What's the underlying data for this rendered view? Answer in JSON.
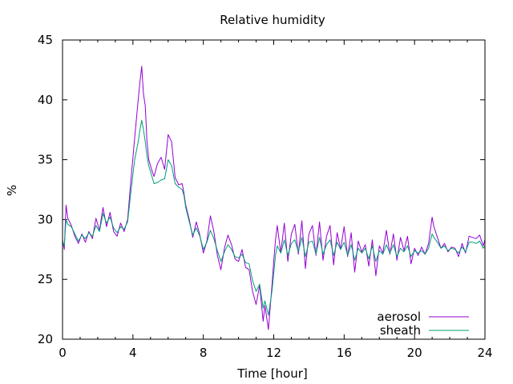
{
  "chart_data": {
    "type": "line",
    "title": "Relative humidity",
    "xlabel": "Time [hour]",
    "ylabel": "%",
    "xlim": [
      0,
      24
    ],
    "ylim": [
      20,
      45
    ],
    "xticks": [
      0,
      4,
      8,
      12,
      16,
      20,
      24
    ],
    "xtick_labels": [
      "0",
      "4",
      "8",
      "12",
      "16",
      "20",
      "24"
    ],
    "yticks": [
      20,
      25,
      30,
      35,
      40,
      45
    ],
    "ytick_labels": [
      "20",
      "25",
      "30",
      "35",
      "40",
      "45"
    ],
    "grid": false,
    "legend_position": "bottom-right",
    "series": [
      {
        "name": "aerosol",
        "color": "#9400d3",
        "x": [
          0,
          0.1,
          0.2,
          0.3,
          0.5,
          0.7,
          0.9,
          1.1,
          1.3,
          1.5,
          1.7,
          1.9,
          2.1,
          2.3,
          2.5,
          2.7,
          2.9,
          3.0,
          3.1,
          3.3,
          3.5,
          3.7,
          3.9,
          4.1,
          4.3,
          4.4,
          4.5,
          4.6,
          4.7,
          4.8,
          4.9,
          5.0,
          5.1,
          5.2,
          5.4,
          5.6,
          5.8,
          6.0,
          6.2,
          6.4,
          6.6,
          6.8,
          6.9,
          7.0,
          7.2,
          7.4,
          7.6,
          7.8,
          8.0,
          8.2,
          8.4,
          8.6,
          8.8,
          9.0,
          9.2,
          9.4,
          9.6,
          9.8,
          10.0,
          10.2,
          10.4,
          10.6,
          10.8,
          11.0,
          11.2,
          11.4,
          11.5,
          11.7,
          11.9,
          12.0,
          12.1,
          12.2,
          12.4,
          12.6,
          12.8,
          13.0,
          13.2,
          13.4,
          13.6,
          13.8,
          14.0,
          14.2,
          14.4,
          14.6,
          14.8,
          15.0,
          15.2,
          15.4,
          15.6,
          15.8,
          16.0,
          16.2,
          16.4,
          16.6,
          16.8,
          17.0,
          17.2,
          17.4,
          17.6,
          17.8,
          18.0,
          18.2,
          18.4,
          18.6,
          18.8,
          19.0,
          19.2,
          19.4,
          19.6,
          19.8,
          20.0,
          20.2,
          20.4,
          20.6,
          20.8,
          21.0,
          21.1,
          21.3,
          21.5,
          21.7,
          21.9,
          22.1,
          22.3,
          22.5,
          22.7,
          22.9,
          23.1,
          23.3,
          23.5,
          23.7,
          23.9,
          24.0
        ],
        "values": [
          28.3,
          27.5,
          31.2,
          30.1,
          29.5,
          28.6,
          28.0,
          28.8,
          28.1,
          29.0,
          28.4,
          30.1,
          29.1,
          31.0,
          29.4,
          30.6,
          29.0,
          28.8,
          28.6,
          29.7,
          29.0,
          30.0,
          33.5,
          36.8,
          40.0,
          41.5,
          42.8,
          40.5,
          39.5,
          36.5,
          35.0,
          34.5,
          34.0,
          33.6,
          34.7,
          35.2,
          34.2,
          37.1,
          36.5,
          33.5,
          32.9,
          33.0,
          32.2,
          31.2,
          30.0,
          28.5,
          29.8,
          28.7,
          27.2,
          28.2,
          30.3,
          29.0,
          27.0,
          25.8,
          27.6,
          28.7,
          27.9,
          26.7,
          26.5,
          27.5,
          26.0,
          25.8,
          24.0,
          22.9,
          24.5,
          21.5,
          22.8,
          20.8,
          24.5,
          26.5,
          28.3,
          29.5,
          27.2,
          29.7,
          26.5,
          28.8,
          29.6,
          27.1,
          29.9,
          25.9,
          28.8,
          29.5,
          27.0,
          29.8,
          26.6,
          28.6,
          29.5,
          26.2,
          28.9,
          27.5,
          29.4,
          26.9,
          28.9,
          25.6,
          28.2,
          27.3,
          27.9,
          26.1,
          28.3,
          25.3,
          27.8,
          27.2,
          29.1,
          27.1,
          28.8,
          26.6,
          28.5,
          27.4,
          28.6,
          26.3,
          27.6,
          27.0,
          27.7,
          27.1,
          28.0,
          30.2,
          29.4,
          28.5,
          27.6,
          28.0,
          27.3,
          27.7,
          27.6,
          26.9,
          28.0,
          27.2,
          28.6,
          28.5,
          28.4,
          28.7,
          27.8,
          28.3
        ]
      },
      {
        "name": "sheath",
        "color": "#009e73",
        "x": [
          0,
          0.1,
          0.2,
          0.3,
          0.5,
          0.7,
          0.9,
          1.1,
          1.3,
          1.5,
          1.7,
          1.9,
          2.1,
          2.3,
          2.5,
          2.7,
          2.9,
          3.0,
          3.1,
          3.3,
          3.5,
          3.7,
          3.9,
          4.1,
          4.3,
          4.4,
          4.5,
          4.6,
          4.7,
          4.8,
          4.9,
          5.0,
          5.1,
          5.2,
          5.4,
          5.6,
          5.8,
          6.0,
          6.2,
          6.4,
          6.6,
          6.8,
          6.9,
          7.0,
          7.2,
          7.4,
          7.6,
          7.8,
          8.0,
          8.2,
          8.4,
          8.6,
          8.8,
          9.0,
          9.2,
          9.4,
          9.6,
          9.8,
          10.0,
          10.2,
          10.4,
          10.6,
          10.8,
          11.0,
          11.2,
          11.4,
          11.5,
          11.7,
          11.9,
          12.0,
          12.1,
          12.2,
          12.4,
          12.6,
          12.8,
          13.0,
          13.2,
          13.4,
          13.6,
          13.8,
          14.0,
          14.2,
          14.4,
          14.6,
          14.8,
          15.0,
          15.2,
          15.4,
          15.6,
          15.8,
          16.0,
          16.2,
          16.4,
          16.6,
          16.8,
          17.0,
          17.2,
          17.4,
          17.6,
          17.8,
          18.0,
          18.2,
          18.4,
          18.6,
          18.8,
          19.0,
          19.2,
          19.4,
          19.6,
          19.8,
          20.0,
          20.2,
          20.4,
          20.6,
          20.8,
          21.0,
          21.1,
          21.3,
          21.5,
          21.7,
          21.9,
          22.1,
          22.3,
          22.5,
          22.7,
          22.9,
          23.1,
          23.3,
          23.5,
          23.7,
          23.9,
          24.0
        ],
        "values": [
          28.2,
          27.8,
          30.0,
          29.6,
          29.4,
          28.8,
          28.2,
          28.7,
          28.4,
          28.9,
          28.6,
          29.5,
          29.0,
          30.5,
          29.7,
          30.2,
          29.3,
          29.1,
          28.9,
          29.4,
          29.2,
          29.8,
          32.5,
          35.0,
          36.5,
          37.5,
          38.3,
          37.5,
          36.5,
          35.3,
          34.5,
          34.0,
          33.5,
          33.0,
          33.1,
          33.3,
          33.4,
          35.0,
          34.5,
          33.0,
          32.7,
          32.5,
          32.0,
          31.0,
          29.8,
          28.7,
          29.3,
          28.6,
          27.5,
          28.1,
          29.1,
          28.4,
          27.4,
          26.5,
          27.3,
          27.9,
          27.5,
          26.9,
          26.8,
          27.1,
          26.4,
          26.3,
          24.9,
          24.0,
          24.6,
          22.6,
          23.2,
          22.0,
          24.0,
          25.5,
          27.0,
          27.8,
          27.2,
          28.3,
          27.0,
          28.0,
          28.3,
          27.3,
          28.5,
          26.9,
          28.1,
          28.2,
          27.1,
          28.5,
          27.1,
          27.9,
          28.3,
          27.0,
          28.1,
          27.5,
          28.1,
          27.0,
          27.9,
          26.6,
          27.6,
          27.2,
          27.6,
          26.7,
          27.8,
          26.5,
          27.4,
          27.1,
          27.9,
          27.2,
          27.9,
          26.9,
          27.6,
          27.3,
          27.8,
          26.9,
          27.4,
          27.2,
          27.4,
          27.1,
          27.6,
          28.8,
          28.5,
          28.1,
          27.6,
          27.8,
          27.4,
          27.6,
          27.5,
          27.2,
          27.7,
          27.3,
          28.1,
          28.1,
          28.0,
          28.2,
          27.6,
          27.8
        ]
      }
    ]
  }
}
